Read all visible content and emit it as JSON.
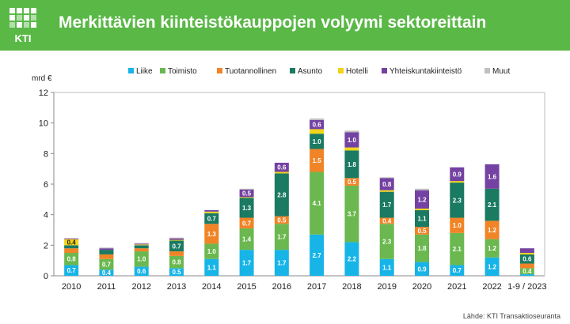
{
  "header": {
    "title": "Merkittävien kiinteistökauppojen volyymi sektoreittain",
    "logo_text": "KTI",
    "bg_color": "#5ab847"
  },
  "source": "Lähde: KTI Transaktioseuranta",
  "chart_data": {
    "type": "bar",
    "stacked": true,
    "title": "Merkittävien kiinteistökauppojen volyymi sektoreittain",
    "ylabel": "mrd €",
    "xlabel": "",
    "ylim": [
      0,
      12
    ],
    "yticks": [
      0,
      2,
      4,
      6,
      8,
      10,
      12
    ],
    "grid": false,
    "legend_position": "top",
    "categories": [
      "2010",
      "2011",
      "2012",
      "2013",
      "2014",
      "2015",
      "2016",
      "2017",
      "2018",
      "2019",
      "2020",
      "2021",
      "2022",
      "1-9 / 2023"
    ],
    "series": [
      {
        "name": "Liike",
        "color": "#17b4e8",
        "values": [
          0.7,
          0.4,
          0.6,
          0.5,
          1.1,
          1.7,
          1.7,
          2.7,
          2.2,
          1.1,
          0.9,
          0.7,
          1.2,
          0.1
        ]
      },
      {
        "name": "Toimisto",
        "color": "#6ab84f",
        "values": [
          0.8,
          0.7,
          1.0,
          0.8,
          1.0,
          1.4,
          1.7,
          4.1,
          3.7,
          2.3,
          1.8,
          2.1,
          1.2,
          0.4
        ]
      },
      {
        "name": "Tuotannollinen",
        "color": "#f08426",
        "values": [
          0.3,
          0.3,
          0.2,
          0.3,
          1.3,
          0.7,
          0.5,
          1.5,
          0.5,
          0.4,
          0.5,
          1.0,
          1.2,
          0.3
        ]
      },
      {
        "name": "Asunto",
        "color": "#1a7a62",
        "values": [
          0.2,
          0.3,
          0.2,
          0.7,
          0.7,
          1.3,
          2.8,
          1.0,
          1.8,
          1.7,
          1.1,
          2.3,
          2.1,
          0.6
        ]
      },
      {
        "name": "Hotelli",
        "color": "#f2d418",
        "values": [
          0.4,
          0.0,
          0.05,
          0.05,
          0.1,
          0.05,
          0.1,
          0.3,
          0.2,
          0.1,
          0.1,
          0.1,
          0.0,
          0.1
        ]
      },
      {
        "name": "Yhteiskuntakiinteistö",
        "color": "#7442a2",
        "values": [
          0.05,
          0.1,
          0.05,
          0.1,
          0.1,
          0.5,
          0.6,
          0.6,
          1.0,
          0.8,
          1.2,
          0.9,
          1.6,
          0.3
        ]
      },
      {
        "name": "Muut",
        "color": "#c0c0c0",
        "values": [
          0.0,
          0.05,
          0.05,
          0.05,
          0.0,
          0.05,
          0.0,
          0.1,
          0.1,
          0.05,
          0.1,
          0.0,
          0.0,
          0.0
        ]
      }
    ],
    "data_labels": [
      {
        "category": "2010",
        "series": "Liike",
        "text": "0.7"
      },
      {
        "category": "2010",
        "series": "Toimisto",
        "text": "0.8"
      },
      {
        "category": "2010",
        "series": "Hotelli",
        "text": "0.4"
      },
      {
        "category": "2011",
        "series": "Liike",
        "text": "0.4"
      },
      {
        "category": "2011",
        "series": "Toimisto",
        "text": "0.7"
      },
      {
        "category": "2012",
        "series": "Liike",
        "text": "0.6"
      },
      {
        "category": "2012",
        "series": "Toimisto",
        "text": "1.0"
      },
      {
        "category": "2013",
        "series": "Liike",
        "text": "0.5"
      },
      {
        "category": "2013",
        "series": "Toimisto",
        "text": "0.8"
      },
      {
        "category": "2013",
        "series": "Asunto",
        "text": "0.7"
      },
      {
        "category": "2014",
        "series": "Liike",
        "text": "1.1"
      },
      {
        "category": "2014",
        "series": "Toimisto",
        "text": "1.0"
      },
      {
        "category": "2014",
        "series": "Tuotannollinen",
        "text": "1.3"
      },
      {
        "category": "2014",
        "series": "Asunto",
        "text": "0.7"
      },
      {
        "category": "2015",
        "series": "Liike",
        "text": "1.7"
      },
      {
        "category": "2015",
        "series": "Toimisto",
        "text": "1.4"
      },
      {
        "category": "2015",
        "series": "Tuotannollinen",
        "text": "0.7"
      },
      {
        "category": "2015",
        "series": "Asunto",
        "text": "1.3"
      },
      {
        "category": "2015",
        "series": "Yhteiskuntakiinteistö",
        "text": "0.5"
      },
      {
        "category": "2016",
        "series": "Liike",
        "text": "1.7"
      },
      {
        "category": "2016",
        "series": "Toimisto",
        "text": "1.7"
      },
      {
        "category": "2016",
        "series": "Tuotannollinen",
        "text": "0.5"
      },
      {
        "category": "2016",
        "series": "Asunto",
        "text": "2.8"
      },
      {
        "category": "2016",
        "series": "Yhteiskuntakiinteistö",
        "text": "0.6"
      },
      {
        "category": "2017",
        "series": "Liike",
        "text": "2.7"
      },
      {
        "category": "2017",
        "series": "Toimisto",
        "text": "4.1"
      },
      {
        "category": "2017",
        "series": "Tuotannollinen",
        "text": "1.5"
      },
      {
        "category": "2017",
        "series": "Asunto",
        "text": "1.0"
      },
      {
        "category": "2017",
        "series": "Yhteiskuntakiinteistö",
        "text": "0.6"
      },
      {
        "category": "2018",
        "series": "Liike",
        "text": "2.2"
      },
      {
        "category": "2018",
        "series": "Toimisto",
        "text": "3.7"
      },
      {
        "category": "2018",
        "series": "Tuotannollinen",
        "text": "0.5"
      },
      {
        "category": "2018",
        "series": "Asunto",
        "text": "1.8"
      },
      {
        "category": "2018",
        "series": "Yhteiskuntakiinteistö",
        "text": "1.0"
      },
      {
        "category": "2019",
        "series": "Liike",
        "text": "1.1"
      },
      {
        "category": "2019",
        "series": "Toimisto",
        "text": "2.3"
      },
      {
        "category": "2019",
        "series": "Tuotannollinen",
        "text": "0.4"
      },
      {
        "category": "2019",
        "series": "Asunto",
        "text": "1.7"
      },
      {
        "category": "2019",
        "series": "Yhteiskuntakiinteistö",
        "text": "0.8"
      },
      {
        "category": "2020",
        "series": "Liike",
        "text": "0.9"
      },
      {
        "category": "2020",
        "series": "Toimisto",
        "text": "1.8"
      },
      {
        "category": "2020",
        "series": "Tuotannollinen",
        "text": "0.5"
      },
      {
        "category": "2020",
        "series": "Asunto",
        "text": "1.1"
      },
      {
        "category": "2020",
        "series": "Yhteiskuntakiinteistö",
        "text": "1.2"
      },
      {
        "category": "2021",
        "series": "Liike",
        "text": "0.7"
      },
      {
        "category": "2021",
        "series": "Toimisto",
        "text": "2.1"
      },
      {
        "category": "2021",
        "series": "Tuotannollinen",
        "text": "1.0"
      },
      {
        "category": "2021",
        "series": "Asunto",
        "text": "2.3"
      },
      {
        "category": "2021",
        "series": "Yhteiskuntakiinteistö",
        "text": "0.9"
      },
      {
        "category": "2022",
        "series": "Liike",
        "text": "1.2"
      },
      {
        "category": "2022",
        "series": "Toimisto",
        "text": "1.2"
      },
      {
        "category": "2022",
        "series": "Tuotannollinen",
        "text": "1.2"
      },
      {
        "category": "2022",
        "series": "Asunto",
        "text": "2.1"
      },
      {
        "category": "2022",
        "series": "Yhteiskuntakiinteistö",
        "text": "1.6"
      },
      {
        "category": "1-9 / 2023",
        "series": "Toimisto",
        "text": "0.4"
      },
      {
        "category": "1-9 / 2023",
        "series": "Asunto",
        "text": "0.6"
      }
    ]
  }
}
